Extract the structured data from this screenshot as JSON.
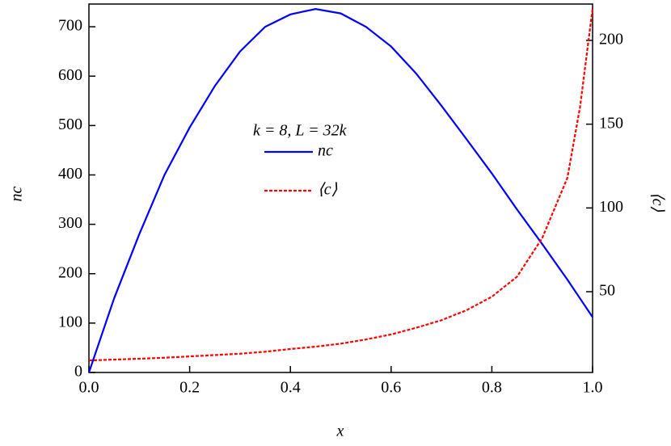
{
  "chart_data": {
    "type": "line",
    "annotation": "k = 8, L = 32k",
    "x_label": "x",
    "y_label": "nc",
    "y2_label": "⟨c⟩",
    "x": [
      0,
      0.05,
      0.1,
      0.15,
      0.2,
      0.25,
      0.3,
      0.35,
      0.4,
      0.45,
      0.5,
      0.55,
      0.6,
      0.65,
      0.7,
      0.75,
      0.8,
      0.85,
      0.9,
      0.95,
      0.975,
      1.0
    ],
    "series": [
      {
        "name": "nc",
        "color": "#0000ff",
        "dash": false,
        "values": [
          0,
          150,
          280,
          400,
          496,
          580,
          650,
          700,
          725,
          736,
          727,
          700,
          660,
          605,
          540,
          472,
          403,
          330,
          260,
          188,
          150,
          112
        ]
      },
      {
        "name": "⟨c⟩",
        "color": "#ff0000",
        "dash": true,
        "axis": "y2",
        "values": [
          9,
          9.5,
          10,
          10.6,
          11.4,
          12.2,
          13,
          14.2,
          15.8,
          17.2,
          19,
          21.5,
          24.5,
          28.5,
          33,
          39,
          47,
          59,
          82,
          118,
          160,
          219
        ]
      }
    ],
    "xlim": [
      0,
      1.0
    ],
    "ylim": [
      0,
      746
    ],
    "y2lim": [
      1.8,
      221.7
    ],
    "xticks": [
      {
        "value": 0,
        "label": "0.0"
      },
      0.2,
      0.4,
      0.6,
      0.8,
      {
        "value": 1,
        "label": "1.0"
      }
    ],
    "yticks": [
      0,
      100,
      200,
      300,
      400,
      500,
      600,
      700
    ],
    "y2ticks": [
      50,
      100,
      150,
      200
    ],
    "grid": false
  }
}
